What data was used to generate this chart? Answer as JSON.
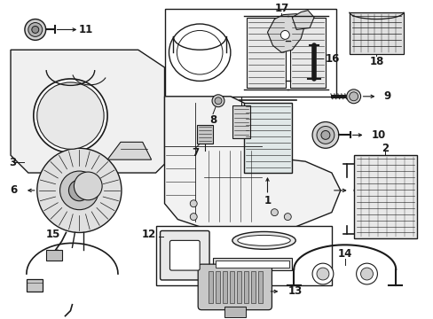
{
  "background_color": "#ffffff",
  "fig_width": 4.89,
  "fig_height": 3.6,
  "dpi": 100,
  "dark": "#1a1a1a",
  "gray": "#888888",
  "light": "#e8e8e8",
  "mid": "#cccccc"
}
